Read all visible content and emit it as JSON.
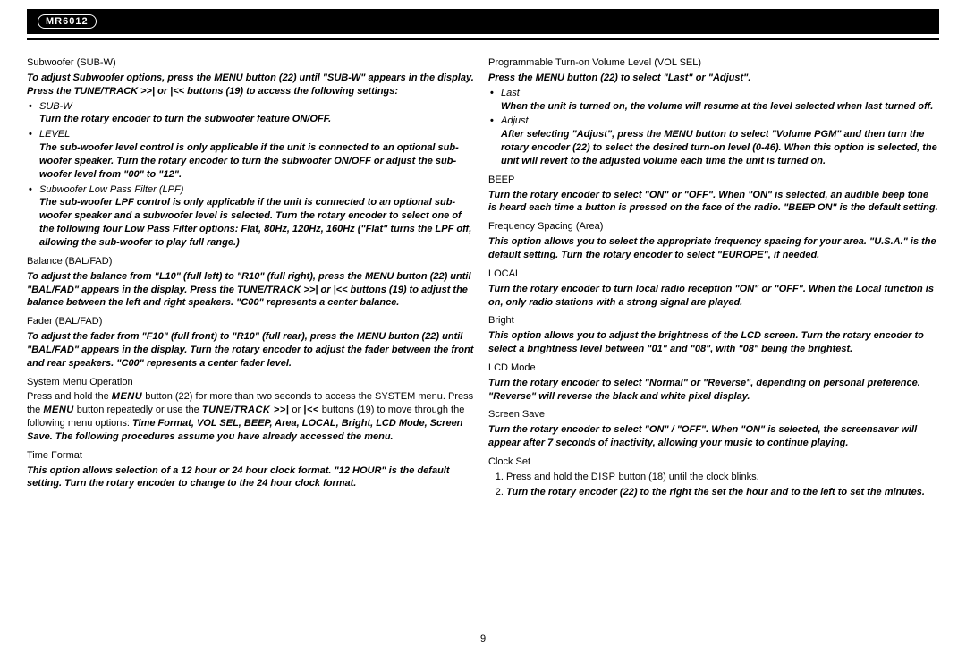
{
  "logo": "MR6012",
  "pageNumber": "9",
  "left": {
    "subw": {
      "title": "Subwoofer (SUB-W)",
      "intro": "To adjust Subwoofer options, press the MENU button (22) until \"SUB-W\" appears in the display. Press the TUNE/TRACK >>| or |<< buttons (19) to access the following settings:",
      "items": [
        {
          "label": "SUB-W",
          "body": "Turn the rotary encoder to turn the subwoofer feature ON/OFF."
        },
        {
          "label": "LEVEL",
          "body": "The sub-woofer level control is only applicable if the unit is connected to an optional sub-woofer speaker. Turn the rotary encoder to turn the subwoofer ON/OFF or adjust the sub-woofer level from \"00\" to \"12\"."
        },
        {
          "label": "Subwoofer Low Pass Filter (LPF)",
          "body": "The sub-woofer LPF control is only applicable if the unit is connected to an optional sub-woofer speaker and a subwoofer level is selected. Turn the rotary encoder to select one of the following four Low Pass Filter options: Flat, 80Hz, 120Hz, 160Hz (\"Flat\" turns the LPF off, allowing the sub-woofer to play full range.)"
        }
      ]
    },
    "balance": {
      "title": "Balance (BAL/FAD)",
      "body": "To adjust the balance from \"L10\" (full left) to \"R10\" (full right), press the MENU button (22) until \"BAL/FAD\" appears in the display. Press the TUNE/TRACK >>| or |<< buttons (19) to adjust the balance between the left and right speakers. \"C00\" represents a center balance."
    },
    "fader": {
      "title": "Fader (BAL/FAD)",
      "body": "To adjust the fader from \"F10\" (full front) to \"R10\" (full rear), press the MENU button (22) until \"BAL/FAD\" appears in the display. Turn the rotary encoder to adjust the fader between the front and rear speakers. \"C00\" represents a center fader level."
    },
    "system": {
      "title": "System Menu Operation",
      "body1": "Press and hold the MENU button (22) for more than two seconds to access the SYSTEM menu. Press the MENU button repeatedly or use the TUNE/TRACK >>| or |<< buttons (19) to move through the following menu options: Time Format, VOL SEL, BEEP, Area, LOCAL, Bright, LCD Mode, Screen Save. The following procedures assume you have already accessed the menu."
    },
    "time": {
      "title": "Time Format",
      "body": "This option allows selection of a 12 hour or 24 hour clock format. \"12 HOUR\" is the default setting. Turn the rotary encoder to change to the 24 hour clock format."
    }
  },
  "right": {
    "volsel": {
      "title": "Programmable Turn-on Volume Level (VOL SEL)",
      "intro": "Press the MENU button (22) to select \"Last\" or \"Adjust\".",
      "items": [
        {
          "label": "Last",
          "body": "When the unit is turned on, the volume will resume at the level selected when last turned off."
        },
        {
          "label": "Adjust",
          "body": "After selecting \"Adjust\", press the MENU button to select \"Volume PGM\" and then turn the rotary encoder (22) to select the desired turn-on level (0-46). When this option is selected, the unit will revert to the adjusted volume each time the unit is turned on."
        }
      ]
    },
    "beep": {
      "title": "BEEP",
      "body": "Turn the rotary encoder to select \"ON\" or \"OFF\". When \"ON\" is selected, an audible beep tone is heard each time a button is pressed on the face of the radio. \"BEEP ON\" is the default setting."
    },
    "freq": {
      "title": "Frequency Spacing (Area)",
      "body": "This option allows you to select the appropriate frequency spacing for your area. \"U.S.A.\" is the default setting. Turn the rotary encoder to select \"EUROPE\", if needed."
    },
    "local": {
      "title": "LOCAL",
      "body": "Turn the rotary encoder to turn local radio reception \"ON\" or \"OFF\". When the Local function is on, only radio stations with a strong signal are played."
    },
    "bright": {
      "title": "Bright",
      "body": "This option allows you to adjust the brightness of the LCD screen. Turn the rotary encoder to select a brightness level between \"01\" and \"08\", with \"08\" being the brightest."
    },
    "lcd": {
      "title": "LCD Mode",
      "body": "Turn the rotary encoder to select \"Normal\" or \"Reverse\", depending on personal preference. \"Reverse\" will reverse the black and white pixel display."
    },
    "screen": {
      "title": "Screen Save",
      "body": "Turn the rotary encoder to select \"ON\" / \"OFF\". When \"ON\" is selected, the screensaver will appear after 7 seconds of inactivity, allowing your music to continue playing."
    },
    "clock": {
      "title": "Clock Set",
      "step1": "Press and hold the DISP button (18) until the clock blinks.",
      "step2": "Turn the rotary encoder (22) to the right the set the hour and to the left to set the minutes."
    }
  }
}
